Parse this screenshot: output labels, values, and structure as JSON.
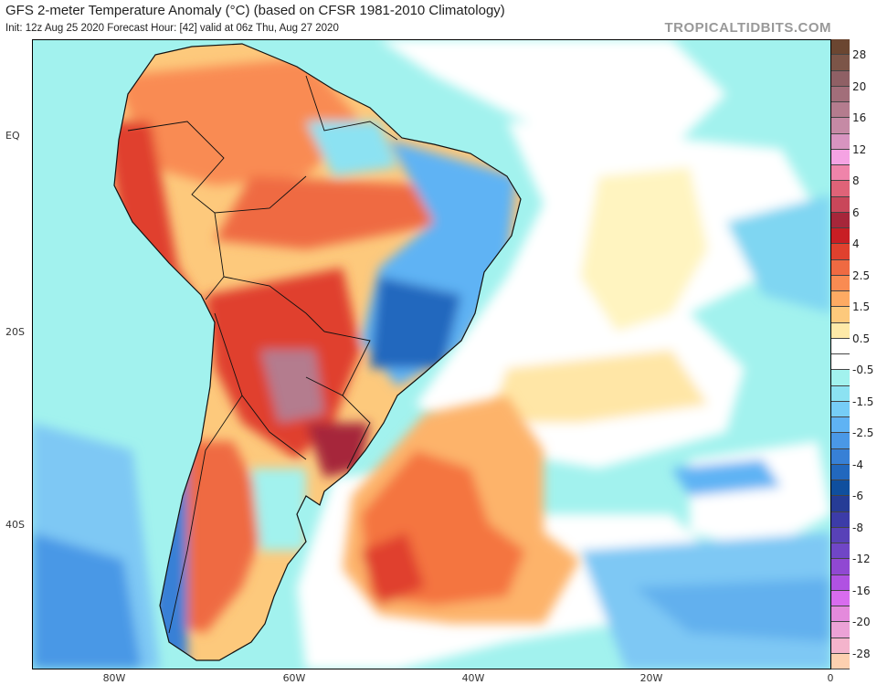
{
  "header": {
    "title": "GFS 2-meter Temperature Anomaly (°C) (based on CFSR 1981-2010 Climatology)",
    "subtitle": "Init: 12z Aug 25 2020   Forecast Hour: [42]   valid at 06z Thu, Aug 27 2020",
    "brand": "TROPICALTIDBITS.COM"
  },
  "map": {
    "lat_labels": [
      "EQ",
      "20S",
      "40S"
    ],
    "lon_labels": [
      "80W",
      "60W",
      "40W",
      "20W",
      "0"
    ]
  },
  "colorbar": {
    "unit": "°C",
    "labels": [
      "28",
      "20",
      "16",
      "12",
      "8",
      "6",
      "4",
      "2.5",
      "1.5",
      "0.5",
      "-0.5",
      "-1.5",
      "-2.5",
      "-4",
      "-6",
      "-8",
      "-12",
      "-16",
      "-20",
      "-28"
    ],
    "colors": [
      "#6b4631",
      "#7c5548",
      "#8f6065",
      "#a26e7a",
      "#b47c8e",
      "#c58aa5",
      "#d894c0",
      "#f5a3e3",
      "#ef84aa",
      "#df6378",
      "#c9475a",
      "#a6263a",
      "#c81e24",
      "#e0412e",
      "#ef6a42",
      "#f98b52",
      "#fdaa63",
      "#fdc97c",
      "#fee9a8",
      "#ffffff",
      "#ffffff",
      "#a2f2ee",
      "#8ce2f2",
      "#76cdf6",
      "#5fb3f4",
      "#4a98e6",
      "#3780d6",
      "#2268be",
      "#0f4f9e",
      "#263c96",
      "#3c3ca8",
      "#5842b8",
      "#7046c6",
      "#9048d2",
      "#b052e2",
      "#d86cee",
      "#e48adc",
      "#eca2d6",
      "#f4b4cc",
      "#fdd0b0"
    ]
  }
}
